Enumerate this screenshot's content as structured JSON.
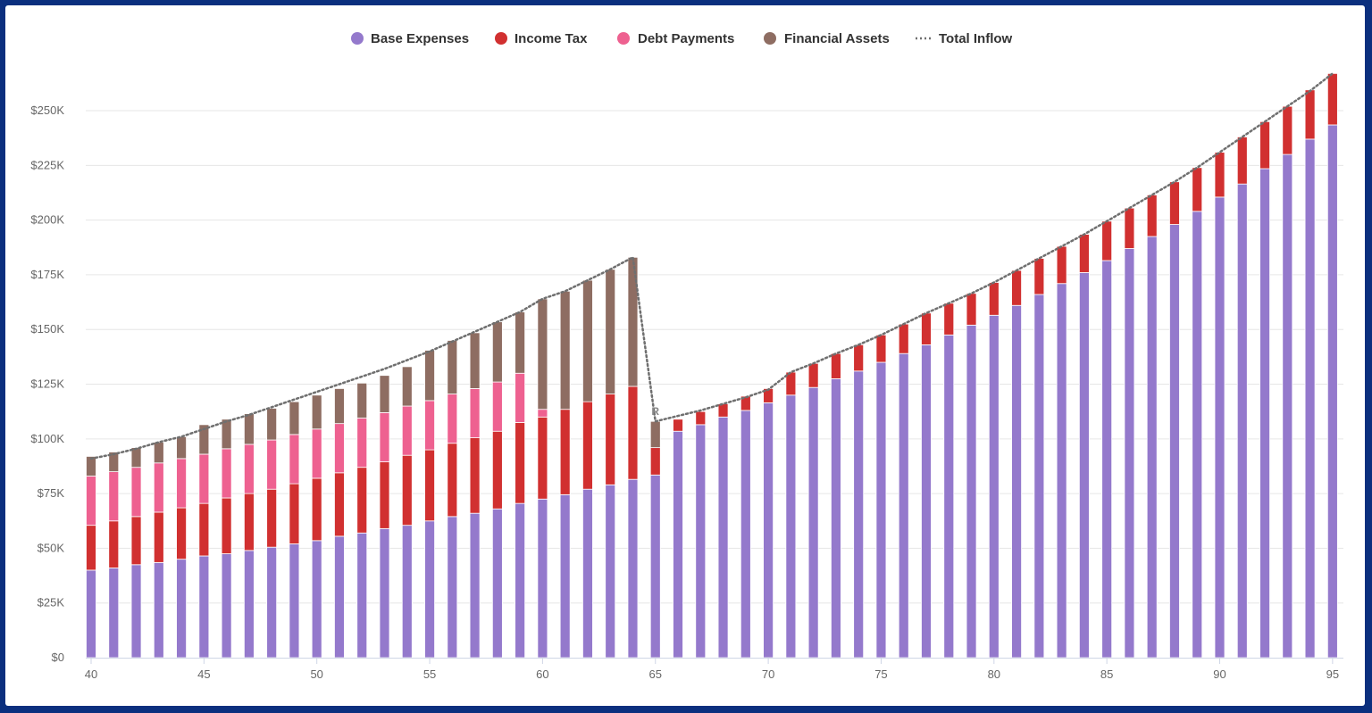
{
  "colors": {
    "base": "#9479cc",
    "tax": "#d13030",
    "debt": "#ee6190",
    "assets": "#8e6d62",
    "inflow": "#6f6f6f",
    "grid": "#e6e6e6",
    "axis": "#cfd6e6"
  },
  "legend": {
    "base_label": "Base Expenses",
    "tax_label": "Income Tax",
    "debt_label": "Debt Payments",
    "assets_label": "Financial Assets",
    "inflow_label": "Total Inflow"
  },
  "marker": {
    "label": "R",
    "age": 65
  },
  "chart_data": {
    "type": "bar",
    "stacked": true,
    "xlabel": "",
    "ylabel": "",
    "x": [
      40,
      41,
      42,
      43,
      44,
      45,
      46,
      47,
      48,
      49,
      50,
      51,
      52,
      53,
      54,
      55,
      56,
      57,
      58,
      59,
      60,
      61,
      62,
      63,
      64,
      65,
      66,
      67,
      68,
      69,
      70,
      71,
      72,
      73,
      74,
      75,
      76,
      77,
      78,
      79,
      80,
      81,
      82,
      83,
      84,
      85,
      86,
      87,
      88,
      89,
      90,
      91,
      92,
      93,
      94,
      95
    ],
    "x_ticks": [
      40,
      45,
      50,
      55,
      60,
      65,
      70,
      75,
      80,
      85,
      90,
      95
    ],
    "y_ticks": [
      0,
      25000,
      50000,
      75000,
      100000,
      125000,
      150000,
      175000,
      200000,
      225000,
      250000
    ],
    "y_tick_labels": [
      "$0",
      "$25K",
      "$50K",
      "$75K",
      "$100K",
      "$125K",
      "$150K",
      "$175K",
      "$200K",
      "$225K",
      "$250K"
    ],
    "ylim": [
      0,
      270000
    ],
    "grid": true,
    "legend_position": "top",
    "series": [
      {
        "name": "Base Expenses",
        "kind": "bar",
        "color_key": "base",
        "values": [
          40000,
          41000,
          42500,
          43500,
          45000,
          46500,
          47500,
          49000,
          50500,
          52000,
          53500,
          55500,
          57000,
          59000,
          60500,
          62500,
          64500,
          66000,
          68000,
          70500,
          72500,
          74500,
          77000,
          79000,
          81500,
          83500,
          103500,
          106500,
          110000,
          113000,
          116500,
          120000,
          123500,
          127500,
          131000,
          135000,
          139000,
          143000,
          147500,
          152000,
          156500,
          161000,
          166000,
          171000,
          176000,
          181500,
          187000,
          192500,
          198000,
          204000,
          210500,
          216500,
          223500,
          230000,
          237000,
          243500
        ]
      },
      {
        "name": "Income Tax",
        "kind": "bar",
        "color_key": "tax",
        "values": [
          20500,
          21500,
          22000,
          23000,
          23500,
          24000,
          25500,
          26000,
          26500,
          27500,
          28500,
          29000,
          30000,
          30500,
          32000,
          32500,
          33500,
          34500,
          35500,
          37000,
          37500,
          39000,
          40000,
          41500,
          42500,
          12500,
          5500,
          6000,
          6000,
          6500,
          6500,
          10500,
          11000,
          11500,
          12000,
          12500,
          13500,
          14500,
          14500,
          14500,
          15000,
          16000,
          16500,
          17000,
          17500,
          18000,
          18500,
          19000,
          19500,
          20000,
          20500,
          21500,
          21500,
          22000,
          22500,
          23500
        ]
      },
      {
        "name": "Debt Payments",
        "kind": "bar",
        "color_key": "debt",
        "values": [
          22500,
          22500,
          22500,
          22500,
          22500,
          22500,
          22500,
          22500,
          22500,
          22500,
          22500,
          22500,
          22500,
          22500,
          22500,
          22500,
          22500,
          22500,
          22500,
          22500,
          3500,
          0,
          0,
          0,
          0,
          0,
          0,
          0,
          0,
          0,
          0,
          0,
          0,
          0,
          0,
          0,
          0,
          0,
          0,
          0,
          0,
          0,
          0,
          0,
          0,
          0,
          0,
          0,
          0,
          0,
          0,
          0,
          0,
          0,
          0,
          0
        ]
      },
      {
        "name": "Financial Assets",
        "kind": "bar",
        "color_key": "assets",
        "values": [
          9000,
          9000,
          9000,
          9500,
          10000,
          13500,
          13500,
          14000,
          14500,
          15000,
          15500,
          16000,
          16000,
          17000,
          18000,
          23000,
          24500,
          25500,
          27500,
          28000,
          50500,
          54000,
          55500,
          57000,
          59000,
          12000,
          0,
          0,
          0,
          0,
          0,
          0,
          0,
          0,
          0,
          0,
          0,
          0,
          0,
          0,
          0,
          0,
          0,
          0,
          0,
          0,
          0,
          0,
          0,
          0,
          0,
          0,
          0,
          0,
          0,
          0
        ]
      },
      {
        "name": "Total Inflow",
        "kind": "line",
        "color_key": "inflow",
        "values": [
          91000,
          93000,
          95500,
          98500,
          101000,
          104500,
          108000,
          111000,
          114500,
          118000,
          121500,
          125000,
          128500,
          132000,
          136000,
          140000,
          144500,
          149000,
          153500,
          158000,
          164000,
          167500,
          172500,
          177500,
          183000,
          108000,
          110500,
          113000,
          116000,
          119000,
          122500,
          130500,
          134500,
          139000,
          143000,
          147500,
          152500,
          157500,
          162000,
          166500,
          171500,
          177000,
          182500,
          188000,
          193500,
          199500,
          205500,
          211500,
          217500,
          224000,
          231000,
          238000,
          245000,
          252000,
          259000,
          267000
        ]
      }
    ]
  }
}
